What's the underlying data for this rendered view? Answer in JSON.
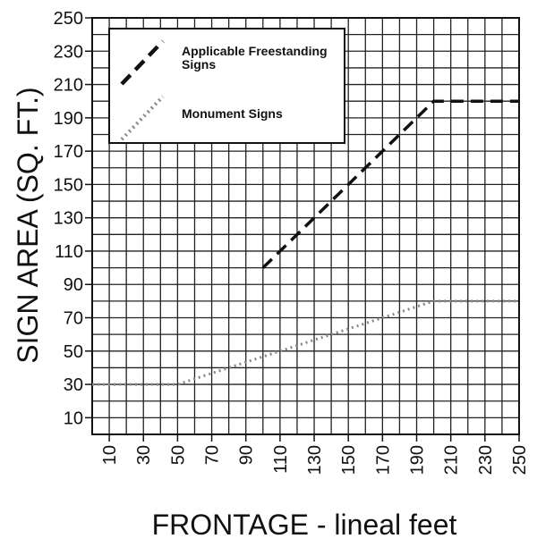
{
  "chart_data": {
    "type": "line",
    "x_label": "FRONTAGE - lineal feet",
    "y_label": "SIGN AREA (SQ. FT.)",
    "xlim": [
      0,
      250
    ],
    "ylim": [
      0,
      250
    ],
    "xticks": [
      10,
      30,
      50,
      70,
      90,
      110,
      130,
      150,
      170,
      190,
      210,
      230,
      250
    ],
    "yticks": [
      10,
      30,
      50,
      70,
      90,
      110,
      130,
      150,
      170,
      190,
      210,
      230,
      250
    ],
    "xminor": [
      20,
      40,
      60,
      80,
      100,
      120,
      140,
      160,
      180,
      200,
      220,
      240
    ],
    "yminor": [
      20,
      40,
      60,
      80,
      100,
      120,
      140,
      160,
      180,
      200,
      220,
      240
    ],
    "grid": true,
    "legend": "upper left",
    "series": [
      {
        "name": "Applicable Freestanding Signs",
        "color": "#111111",
        "style": "dashed",
        "x": [
          100,
          200,
          250
        ],
        "values": [
          100,
          200,
          200
        ]
      },
      {
        "name": "Monument Signs",
        "color": "#888888",
        "style": "dotted",
        "x": [
          0,
          50,
          200,
          250
        ],
        "values": [
          30,
          30,
          80,
          80
        ]
      }
    ]
  }
}
